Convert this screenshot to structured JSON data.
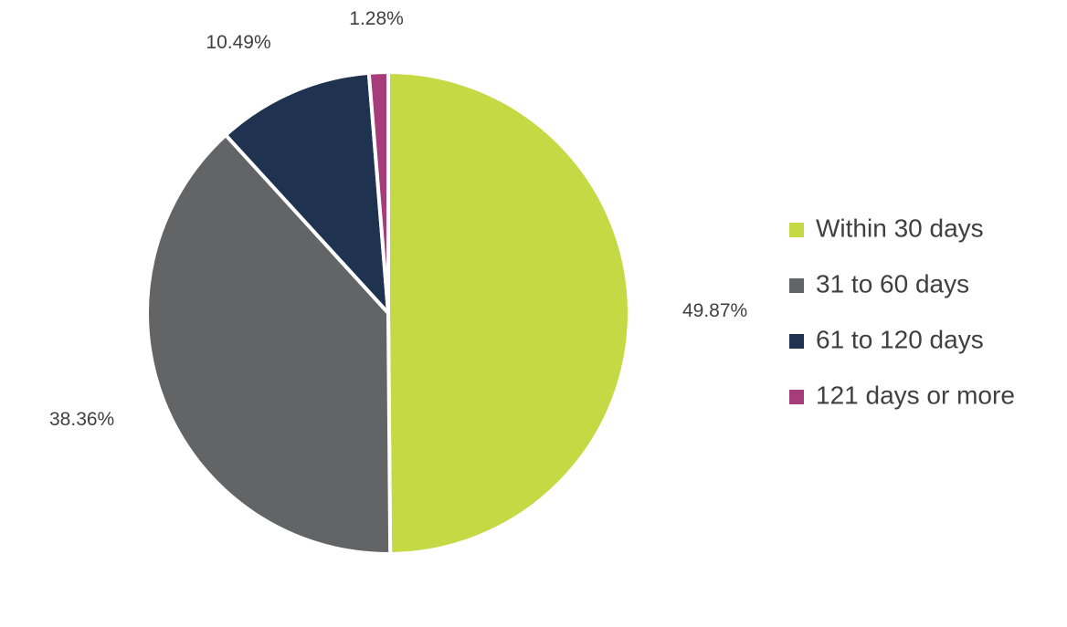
{
  "chart_data": {
    "type": "pie",
    "categories": [
      "Within 30 days",
      "31 to 60 days",
      "61 to 120 days",
      "121 days or more"
    ],
    "values": [
      49.87,
      38.36,
      10.49,
      1.28
    ],
    "value_labels": [
      "49.87%",
      "38.36%",
      "10.49%",
      "1.28%"
    ],
    "colors": [
      "#c4d944",
      "#636466",
      "#1f3350",
      "#a63d7a"
    ],
    "legend": "right"
  }
}
